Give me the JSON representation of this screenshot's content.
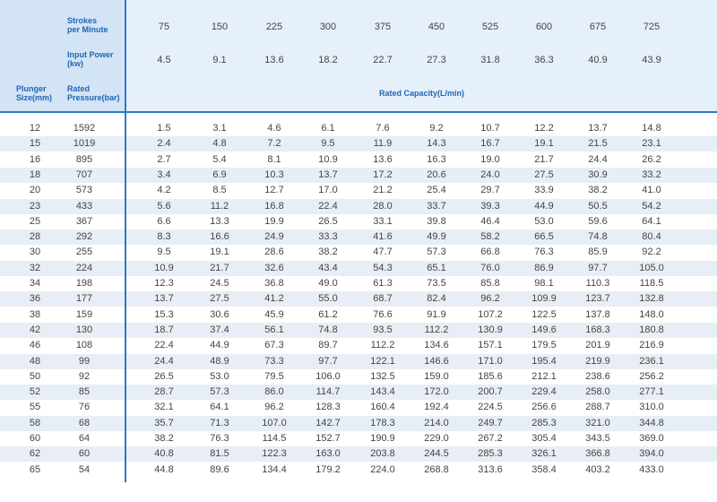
{
  "header": {
    "strokes_label_line1": "Strokes",
    "strokes_label_line2": "per Minute",
    "power_label_line1": "Input Power",
    "power_label_line2": "(kw)",
    "plunger_label_line1": "Plunger",
    "plunger_label_line2": "Size(mm)",
    "rated_label_line1": "Rated",
    "rated_label_line2": "Pressure(bar)",
    "capacity_title": "Rated Capacity(L/min)",
    "strokes": [
      "75",
      "150",
      "225",
      "300",
      "375",
      "450",
      "525",
      "600",
      "675",
      "725"
    ],
    "power": [
      "4.5",
      "9.1",
      "13.6",
      "18.2",
      "22.7",
      "27.3",
      "31.8",
      "36.3",
      "40.9",
      "43.9"
    ]
  },
  "rows": [
    {
      "size": "12",
      "pressure": "1592",
      "cap": [
        "1.5",
        "3.1",
        "4.6",
        "6.1",
        "7.6",
        "9.2",
        "10.7",
        "12.2",
        "13.7",
        "14.8"
      ]
    },
    {
      "size": "15",
      "pressure": "1019",
      "cap": [
        "2.4",
        "4.8",
        "7.2",
        "9.5",
        "11.9",
        "14.3",
        "16.7",
        "19.1",
        "21.5",
        "23.1"
      ]
    },
    {
      "size": "16",
      "pressure": "895",
      "cap": [
        "2.7",
        "5.4",
        "8.1",
        "10.9",
        "13.6",
        "16.3",
        "19.0",
        "21.7",
        "24.4",
        "26.2"
      ]
    },
    {
      "size": "18",
      "pressure": "707",
      "cap": [
        "3.4",
        "6.9",
        "10.3",
        "13.7",
        "17.2",
        "20.6",
        "24.0",
        "27.5",
        "30.9",
        "33.2"
      ]
    },
    {
      "size": "20",
      "pressure": "573",
      "cap": [
        "4.2",
        "8.5",
        "12.7",
        "17.0",
        "21.2",
        "25.4",
        "29.7",
        "33.9",
        "38.2",
        "41.0"
      ]
    },
    {
      "size": "23",
      "pressure": "433",
      "cap": [
        "5.6",
        "11.2",
        "16.8",
        "22.4",
        "28.0",
        "33.7",
        "39.3",
        "44.9",
        "50.5",
        "54.2"
      ]
    },
    {
      "size": "25",
      "pressure": "367",
      "cap": [
        "6.6",
        "13.3",
        "19.9",
        "26.5",
        "33.1",
        "39.8",
        "46.4",
        "53.0",
        "59.6",
        "64.1"
      ]
    },
    {
      "size": "28",
      "pressure": "292",
      "cap": [
        "8.3",
        "16.6",
        "24.9",
        "33.3",
        "41.6",
        "49.9",
        "58.2",
        "66.5",
        "74.8",
        "80.4"
      ]
    },
    {
      "size": "30",
      "pressure": "255",
      "cap": [
        "9.5",
        "19.1",
        "28.6",
        "38.2",
        "47.7",
        "57.3",
        "66.8",
        "76.3",
        "85.9",
        "92.2"
      ]
    },
    {
      "size": "32",
      "pressure": "224",
      "cap": [
        "10.9",
        "21.7",
        "32.6",
        "43.4",
        "54.3",
        "65.1",
        "76.0",
        "86.9",
        "97.7",
        "105.0"
      ]
    },
    {
      "size": "34",
      "pressure": "198",
      "cap": [
        "12.3",
        "24.5",
        "36.8",
        "49.0",
        "61.3",
        "73.5",
        "85.8",
        "98.1",
        "110.3",
        "118.5"
      ]
    },
    {
      "size": "36",
      "pressure": "177",
      "cap": [
        "13.7",
        "27.5",
        "41.2",
        "55.0",
        "68.7",
        "82.4",
        "96.2",
        "109.9",
        "123.7",
        "132.8"
      ]
    },
    {
      "size": "38",
      "pressure": "159",
      "cap": [
        "15.3",
        "30.6",
        "45.9",
        "61.2",
        "76.6",
        "91.9",
        "107.2",
        "122.5",
        "137.8",
        "148.0"
      ]
    },
    {
      "size": "42",
      "pressure": "130",
      "cap": [
        "18.7",
        "37.4",
        "56.1",
        "74.8",
        "93.5",
        "112.2",
        "130.9",
        "149.6",
        "168.3",
        "180.8"
      ]
    },
    {
      "size": "46",
      "pressure": "108",
      "cap": [
        "22.4",
        "44.9",
        "67.3",
        "89.7",
        "112.2",
        "134.6",
        "157.1",
        "179.5",
        "201.9",
        "216.9"
      ]
    },
    {
      "size": "48",
      "pressure": "99",
      "cap": [
        "24.4",
        "48.9",
        "73.3",
        "97.7",
        "122.1",
        "146.6",
        "171.0",
        "195.4",
        "219.9",
        "236.1"
      ]
    },
    {
      "size": "50",
      "pressure": "92",
      "cap": [
        "26.5",
        "53.0",
        "79.5",
        "106.0",
        "132.5",
        "159.0",
        "185.6",
        "212.1",
        "238.6",
        "256.2"
      ]
    },
    {
      "size": "52",
      "pressure": "85",
      "cap": [
        "28.7",
        "57.3",
        "86.0",
        "114.7",
        "143.4",
        "172.0",
        "200.7",
        "229.4",
        "258.0",
        "277.1"
      ]
    },
    {
      "size": "55",
      "pressure": "76",
      "cap": [
        "32.1",
        "64.1",
        "96.2",
        "128.3",
        "160.4",
        "192.4",
        "224.5",
        "256.6",
        "288.7",
        "310.0"
      ]
    },
    {
      "size": "58",
      "pressure": "68",
      "cap": [
        "35.7",
        "71.3",
        "107.0",
        "142.7",
        "178.3",
        "214.0",
        "249.7",
        "285.3",
        "321.0",
        "344.8"
      ]
    },
    {
      "size": "60",
      "pressure": "64",
      "cap": [
        "38.2",
        "76.3",
        "114.5",
        "152.7",
        "190.9",
        "229.0",
        "267.2",
        "305.4",
        "343.5",
        "369.0"
      ]
    },
    {
      "size": "62",
      "pressure": "60",
      "cap": [
        "40.8",
        "81.5",
        "122.3",
        "163.0",
        "203.8",
        "244.5",
        "285.3",
        "326.1",
        "366.8",
        "394.0"
      ]
    },
    {
      "size": "65",
      "pressure": "54",
      "cap": [
        "44.8",
        "89.6",
        "134.4",
        "179.2",
        "224.0",
        "268.8",
        "313.6",
        "358.4",
        "403.2",
        "433.0"
      ]
    }
  ]
}
